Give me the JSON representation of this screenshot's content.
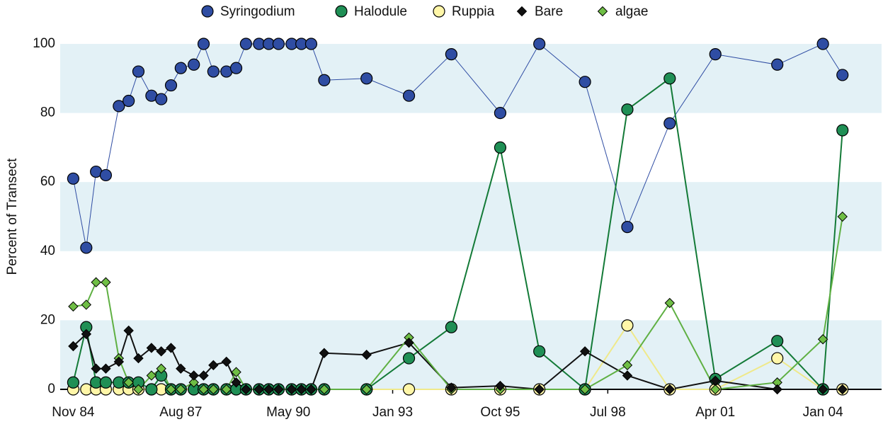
{
  "chart_data": {
    "type": "scatter",
    "y_label": "Percent of Transect",
    "x": [
      "Nov 84",
      "Mar 85",
      "Jun 85",
      "Sep 85",
      "Jan 86",
      "Apr 86",
      "Jul 86",
      "Nov 86",
      "Feb 87",
      "May 87",
      "Aug 87",
      "Dec 87",
      "Mar 88",
      "Jun 88",
      "Oct 88",
      "Jan 89",
      "Apr 89",
      "Aug 89",
      "Nov 89",
      "Feb 90",
      "Jun 90",
      "Sep 90",
      "Dec 90",
      "Apr 91",
      "May 92",
      "Jun 93",
      "Jul 94",
      "Oct 95",
      "Oct 96",
      "Dec 97",
      "Jan 99",
      "Feb 00",
      "Apr 01",
      "Nov 02",
      "Jan 04",
      "Jul 04"
    ],
    "series": [
      {
        "name": "Syringodium",
        "color": "#2f4da3",
        "line_color": "#2f4da3",
        "marker": "circle",
        "values": [
          61,
          41,
          63,
          62,
          82,
          83.5,
          92,
          85,
          84,
          88,
          93,
          94,
          100,
          92,
          92,
          93,
          100,
          100,
          100,
          100,
          100,
          100,
          100,
          89.5,
          90,
          85,
          97,
          80,
          100,
          89,
          47,
          77,
          97,
          94,
          100,
          91
        ]
      },
      {
        "name": "Halodule",
        "color": "#1f8f55",
        "line_color": "#137a37",
        "marker": "circle",
        "values": [
          2,
          18,
          2,
          2,
          2,
          2,
          2,
          0,
          4,
          0,
          0,
          0,
          0,
          0,
          0,
          0,
          0,
          0,
          0,
          0,
          0,
          0,
          0,
          0,
          0,
          9,
          18,
          70,
          11,
          0,
          81,
          90,
          3,
          14,
          0,
          75
        ]
      },
      {
        "name": "Ruppia",
        "color": "#fff6a8",
        "line_color": "#efe98a",
        "marker": "circle",
        "values": [
          0,
          0,
          0,
          0,
          0,
          0,
          0,
          0,
          0,
          0,
          0,
          0,
          0,
          0,
          0,
          0,
          0,
          0,
          0,
          0,
          0,
          0,
          0,
          0,
          0,
          0,
          0,
          0,
          0,
          0,
          18.5,
          0,
          0,
          9,
          0,
          0
        ]
      },
      {
        "name": "Bare",
        "color": "#111111",
        "line_color": "#111111",
        "marker": "diamond",
        "values": [
          12.5,
          16,
          6,
          6,
          8,
          17,
          9,
          12,
          11,
          12,
          6,
          4,
          4,
          7,
          8,
          2,
          0,
          0,
          0,
          0,
          0,
          0,
          0,
          10.5,
          10,
          13.5,
          0.5,
          1,
          0,
          11,
          4,
          0,
          2.5,
          0,
          0,
          0
        ]
      },
      {
        "name": "algae",
        "color": "#6fbe45",
        "line_color": "#5fb043",
        "marker": "diamond",
        "values": [
          24,
          24.5,
          31,
          31,
          9,
          2,
          0,
          4,
          6,
          0,
          0,
          2,
          0,
          0,
          0,
          5,
          0,
          0,
          0,
          0,
          0,
          0,
          0,
          0,
          0,
          15,
          0,
          0,
          0,
          0,
          7,
          25,
          0,
          2,
          14.5,
          50
        ]
      }
    ],
    "xlim": [
      "Jul 84",
      "Jul 05"
    ],
    "xticks": [
      "Nov 84",
      "Aug 87",
      "May 90",
      "Jan 93",
      "Oct 95",
      "Jul 98",
      "Apr 01",
      "Jan 04"
    ],
    "ylim": [
      0,
      100
    ],
    "yticks": [
      0,
      20,
      40,
      60,
      80,
      100
    ],
    "grid": "bands",
    "legend": "top"
  }
}
